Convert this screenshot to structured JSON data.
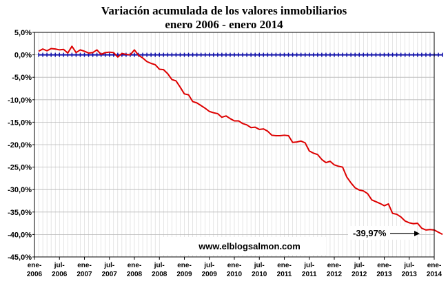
{
  "chart_data": {
    "type": "line",
    "title": "Variación acumulada de los valores inmobiliarios",
    "subtitle": "enero 2006 - enero 2014",
    "xlabel": "",
    "ylabel": "",
    "ylim": [
      -45,
      5
    ],
    "y_ticks": [
      "5,0%",
      "0,0%",
      "-5,0%",
      "-10,0%",
      "-15,0%",
      "-20,0%",
      "-25,0%",
      "-30,0%",
      "-35,0%",
      "-40,0%",
      "-45,0%"
    ],
    "x_ticks": [
      [
        "ene-",
        "2006"
      ],
      [
        "jul-",
        "2006"
      ],
      [
        "ene-",
        "2007"
      ],
      [
        "jul-",
        "2007"
      ],
      [
        "ene-",
        "2008"
      ],
      [
        "jul-",
        "2008"
      ],
      [
        "ene-",
        "2009"
      ],
      [
        "jul-",
        "2009"
      ],
      [
        "ene-",
        "2010"
      ],
      [
        "jul-",
        "2010"
      ],
      [
        "ene-",
        "2011"
      ],
      [
        "jul-",
        "2011"
      ],
      [
        "ene-",
        "2012"
      ],
      [
        "jul-",
        "2012"
      ],
      [
        "ene-",
        "2013"
      ],
      [
        "jul-",
        "2013"
      ],
      [
        "ene-",
        "2014"
      ]
    ],
    "grid": true,
    "series": [
      {
        "color": "#dd0000",
        "start": "2006-01",
        "frequency": "monthly",
        "values": [
          0.8,
          1.3,
          0.9,
          1.4,
          1.3,
          1.1,
          1.2,
          0.4,
          1.9,
          0.5,
          1.1,
          0.8,
          0.4,
          0.5,
          1.1,
          0.1,
          0.5,
          0.6,
          0.5,
          -0.5,
          0.3,
          0.1,
          0.0,
          1.1,
          -0.1,
          -0.7,
          -1.5,
          -1.9,
          -2.2,
          -3.2,
          -3.3,
          -4.2,
          -5.5,
          -5.8,
          -7.2,
          -8.7,
          -8.9,
          -10.4,
          -10.7,
          -11.3,
          -11.9,
          -12.6,
          -12.9,
          -13.1,
          -13.9,
          -13.6,
          -14.2,
          -14.7,
          -14.7,
          -15.3,
          -15.6,
          -16.2,
          -16.1,
          -16.6,
          -16.5,
          -17.0,
          -17.9,
          -18.0,
          -18.0,
          -17.9,
          -18.0,
          -19.5,
          -19.4,
          -19.2,
          -19.6,
          -21.4,
          -21.9,
          -22.2,
          -23.3,
          -24.0,
          -23.7,
          -24.5,
          -24.8,
          -25.0,
          -27.2,
          -28.5,
          -29.6,
          -30.1,
          -30.3,
          -30.9,
          -32.3,
          -32.7,
          -33.1,
          -33.6,
          -33.2,
          -35.3,
          -35.5,
          -36.1,
          -37.0,
          -37.4,
          -37.6,
          -37.5,
          -38.6,
          -39.0,
          -38.9,
          -39.0,
          -39.5,
          -39.97
        ]
      },
      {
        "color": "#1111aa",
        "start": "2006-01",
        "frequency": "monthly",
        "values": [
          0,
          0,
          0,
          0,
          0,
          0,
          0,
          0,
          0,
          0,
          0,
          0,
          0,
          0,
          0,
          0,
          0,
          0,
          0,
          0,
          0,
          0,
          0,
          0,
          0,
          0,
          0,
          0,
          0,
          0,
          0,
          0,
          0,
          0,
          0,
          0,
          0,
          0,
          0,
          0,
          0,
          0,
          0,
          0,
          0,
          0,
          0,
          0,
          0,
          0,
          0,
          0,
          0,
          0,
          0,
          0,
          0,
          0,
          0,
          0,
          0,
          0,
          0,
          0,
          0,
          0,
          0,
          0,
          0,
          0,
          0,
          0,
          0,
          0,
          0,
          0,
          0,
          0,
          0,
          0,
          0,
          0,
          0,
          0,
          0,
          0,
          0,
          0,
          0,
          0,
          0,
          0,
          0,
          0,
          0,
          0,
          0,
          0
        ]
      }
    ],
    "annotation": "-39,97%",
    "watermark": "www.elblogsalmon.com"
  }
}
